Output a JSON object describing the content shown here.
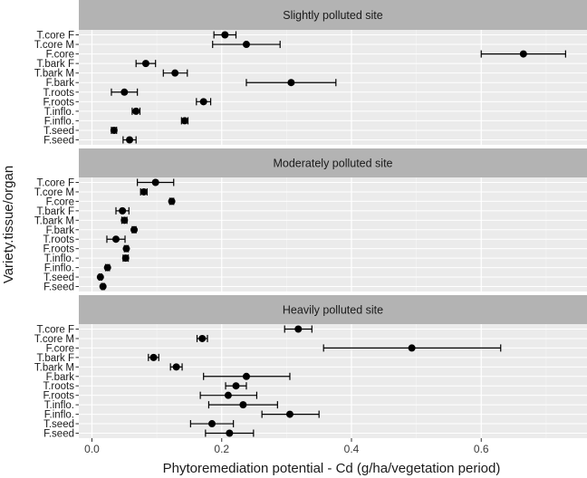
{
  "chart_data": {
    "type": "scatter",
    "subtype": "dot-with-error-bars, faceted",
    "xlabel": "Phytoremediation potential - Cd (g/ha/vegetation period)",
    "ylabel": "Variety.tissue/organ",
    "xlim": [
      -0.02,
      0.74
    ],
    "xticks": [
      0.0,
      0.2,
      0.4,
      0.6
    ],
    "xtick_labels": [
      "0.0",
      "0.2",
      "0.4",
      "0.6"
    ],
    "grid": true,
    "categories": [
      "T.core F",
      "T.core M",
      "F.core",
      "T.bark F",
      "T.bark M",
      "F.bark",
      "T.roots",
      "F.roots",
      "T.inflo.",
      "F.inflo.",
      "T.seed",
      "F.seed"
    ],
    "panels": [
      {
        "title": "Slightly polluted site",
        "points": [
          {
            "label": "T.core F",
            "value": 0.205,
            "low": 0.188,
            "high": 0.222
          },
          {
            "label": "T.core M",
            "value": 0.238,
            "low": 0.186,
            "high": 0.29
          },
          {
            "label": "F.core",
            "value": 0.665,
            "low": 0.6,
            "high": 0.73
          },
          {
            "label": "T.bark F",
            "value": 0.083,
            "low": 0.068,
            "high": 0.098
          },
          {
            "label": "T.bark M",
            "value": 0.128,
            "low": 0.11,
            "high": 0.147
          },
          {
            "label": "F.bark",
            "value": 0.307,
            "low": 0.238,
            "high": 0.376
          },
          {
            "label": "T.roots",
            "value": 0.05,
            "low": 0.03,
            "high": 0.07
          },
          {
            "label": "F.roots",
            "value": 0.172,
            "low": 0.161,
            "high": 0.183
          },
          {
            "label": "T.inflo.",
            "value": 0.068,
            "low": 0.062,
            "high": 0.074
          },
          {
            "label": "F.inflo.",
            "value": 0.143,
            "low": 0.138,
            "high": 0.148
          },
          {
            "label": "T.seed",
            "value": 0.034,
            "low": 0.03,
            "high": 0.038
          },
          {
            "label": "F.seed",
            "value": 0.058,
            "low": 0.048,
            "high": 0.068
          }
        ]
      },
      {
        "title": "Moderately polluted site",
        "points": [
          {
            "label": "T.core F",
            "value": 0.098,
            "low": 0.07,
            "high": 0.126
          },
          {
            "label": "T.core M",
            "value": 0.08,
            "low": 0.075,
            "high": 0.085
          },
          {
            "label": "F.core",
            "value": 0.123,
            "low": 0.12,
            "high": 0.126
          },
          {
            "label": "T.bark F",
            "value": 0.047,
            "low": 0.037,
            "high": 0.057
          },
          {
            "label": "T.bark M",
            "value": 0.05,
            "low": 0.046,
            "high": 0.054
          },
          {
            "label": "F.bark",
            "value": 0.065,
            "low": 0.062,
            "high": 0.068
          },
          {
            "label": "T.roots",
            "value": 0.037,
            "low": 0.023,
            "high": 0.051
          },
          {
            "label": "F.roots",
            "value": 0.053,
            "low": 0.05,
            "high": 0.056
          },
          {
            "label": "T.inflo.",
            "value": 0.052,
            "low": 0.048,
            "high": 0.056
          },
          {
            "label": "F.inflo.",
            "value": 0.024,
            "low": 0.021,
            "high": 0.027
          },
          {
            "label": "T.seed",
            "value": 0.013,
            "low": 0.011,
            "high": 0.015
          },
          {
            "label": "F.seed",
            "value": 0.017,
            "low": 0.015,
            "high": 0.019
          }
        ]
      },
      {
        "title": "Heavily polluted site",
        "points": [
          {
            "label": "T.core F",
            "value": 0.318,
            "low": 0.297,
            "high": 0.339
          },
          {
            "label": "T.core M",
            "value": 0.17,
            "low": 0.162,
            "high": 0.178
          },
          {
            "label": "F.core",
            "value": 0.493,
            "low": 0.357,
            "high": 0.63
          },
          {
            "label": "T.bark F",
            "value": 0.095,
            "low": 0.087,
            "high": 0.103
          },
          {
            "label": "T.bark M",
            "value": 0.13,
            "low": 0.121,
            "high": 0.139
          },
          {
            "label": "F.bark",
            "value": 0.238,
            "low": 0.172,
            "high": 0.305
          },
          {
            "label": "T.roots",
            "value": 0.222,
            "low": 0.206,
            "high": 0.238
          },
          {
            "label": "F.roots",
            "value": 0.21,
            "low": 0.167,
            "high": 0.254
          },
          {
            "label": "T.inflo.",
            "value": 0.233,
            "low": 0.18,
            "high": 0.286
          },
          {
            "label": "F.inflo.",
            "value": 0.305,
            "low": 0.262,
            "high": 0.35
          },
          {
            "label": "T.seed",
            "value": 0.185,
            "low": 0.152,
            "high": 0.218
          },
          {
            "label": "F.seed",
            "value": 0.212,
            "low": 0.175,
            "high": 0.249
          }
        ]
      }
    ],
    "colors": {
      "panel_bg": "#ebebeb",
      "strip_bg": "#b3b3b3",
      "grid_major": "#ffffff",
      "grid_minor": "#f5f5f5",
      "point": "#000000"
    }
  }
}
